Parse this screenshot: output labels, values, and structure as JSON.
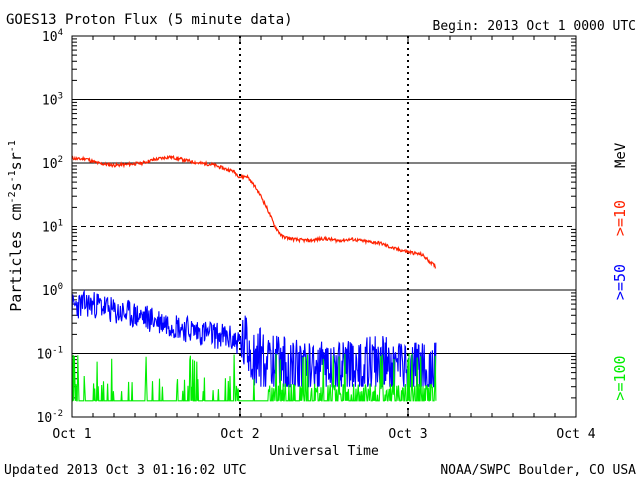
{
  "header": {
    "title": "GOES13 Proton Flux (5 minute data)",
    "begin": "Begin: 2013 Oct 1 0000 UTC"
  },
  "footer": {
    "updated": "Updated 2013 Oct  3 01:16:02 UTC",
    "credit": "NOAA/SWPC Boulder, CO USA"
  },
  "colors": {
    "ge10": "#ff2200",
    "ge50": "#0000ff",
    "ge100": "#00ee00",
    "grid": "#000000"
  },
  "chart_data": {
    "type": "line",
    "title": "GOES13 Proton Flux (5 minute data)",
    "xlabel": "Universal Time",
    "ylabel": "Particles cm-2s-1sr-1",
    "y_scale": "log",
    "ylim": [
      0.01,
      10000
    ],
    "xlim": [
      "2013-10-01 00:00",
      "2013-10-04 00:00"
    ],
    "x_ticks": [
      "Oct 1",
      "Oct 2",
      "Oct 3",
      "Oct 4"
    ],
    "y_ticks": [
      {
        "base": "10",
        "exp": "-2"
      },
      {
        "base": "10",
        "exp": "-1"
      },
      {
        "base": "10",
        "exp": "0"
      },
      {
        "base": "10",
        "exp": "1"
      },
      {
        "base": "10",
        "exp": "2"
      },
      {
        "base": "10",
        "exp": "3"
      },
      {
        "base": "10",
        "exp": "4"
      }
    ],
    "threshold": 10,
    "unit_label": "MeV",
    "series": [
      {
        "name": ">=10",
        "x_hours": [
          0,
          1,
          2,
          3,
          4,
          6,
          8,
          10,
          12,
          14,
          16,
          18,
          20,
          22,
          23,
          24,
          25,
          26,
          27,
          28,
          29,
          30,
          31,
          32,
          34,
          36,
          38,
          40,
          42,
          44,
          46,
          48,
          50,
          52
        ],
        "values": [
          120,
          115,
          118,
          105,
          98,
          92,
          95,
          100,
          115,
          125,
          112,
          100,
          95,
          80,
          75,
          60,
          62,
          45,
          30,
          18,
          10,
          7,
          6.5,
          6.2,
          6.0,
          6.5,
          6.0,
          6.3,
          5.8,
          5.5,
          4.5,
          4.0,
          3.6,
          2.3
        ]
      },
      {
        "name": ">=50",
        "x_hours": [
          0,
          2,
          4,
          6,
          8,
          10,
          12,
          14,
          16,
          18,
          20,
          22,
          24,
          25,
          26,
          27,
          28,
          30,
          32,
          36,
          40,
          44,
          48,
          52
        ],
        "values": [
          0.55,
          0.6,
          0.58,
          0.45,
          0.42,
          0.38,
          0.33,
          0.3,
          0.25,
          0.22,
          0.2,
          0.18,
          0.15,
          0.13,
          0.1,
          0.08,
          0.07,
          0.06,
          0.06,
          0.05,
          0.05,
          0.06,
          0.05,
          0.04
        ]
      },
      {
        "name": ">=100",
        "x_hours": [
          0,
          52
        ],
        "values": [
          0.018,
          0.018
        ]
      }
    ]
  }
}
